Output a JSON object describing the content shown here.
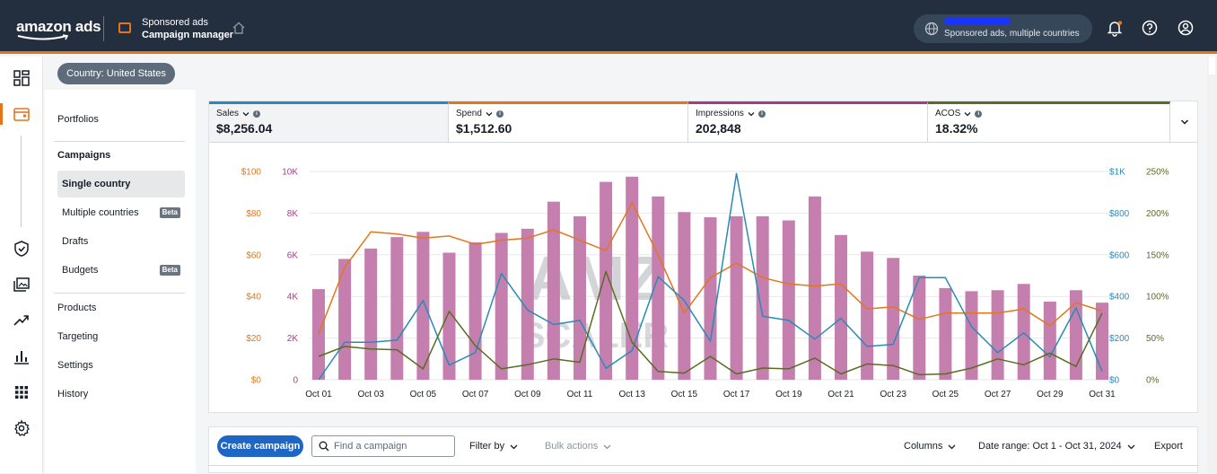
{
  "header": {
    "logo_text": "amazon ads",
    "product_top": "Sponsored ads",
    "product_bottom": "Campaign manager",
    "account_text": "Sponsored ads, multiple countries"
  },
  "country_selector": "Country: United States",
  "left_menu": {
    "portfolios": "Portfolios",
    "campaigns": "Campaigns",
    "single_country": "Single country",
    "multiple_countries": "Multiple countries",
    "drafts": "Drafts",
    "budgets": "Budgets",
    "beta": "Beta",
    "products": "Products",
    "targeting": "Targeting",
    "settings": "Settings",
    "history": "History"
  },
  "metrics": [
    {
      "label": "Sales",
      "value": "$8,256.04",
      "color": "#2a8ab7"
    },
    {
      "label": "Spend",
      "value": "$1,512.60",
      "color": "#e3761d"
    },
    {
      "label": "Impressions",
      "value": "202,848",
      "color": "#a33e84"
    },
    {
      "label": "ACOS",
      "value": "18.32%",
      "color": "#5b6b23"
    }
  ],
  "watermark": {
    "line1": "AMZ",
    "line2": "SCALER"
  },
  "chart_data": {
    "type": "bar+line",
    "categories": [
      "Oct 01",
      "Oct 02",
      "Oct 03",
      "Oct 04",
      "Oct 05",
      "Oct 06",
      "Oct 07",
      "Oct 08",
      "Oct 09",
      "Oct 10",
      "Oct 11",
      "Oct 12",
      "Oct 13",
      "Oct 14",
      "Oct 15",
      "Oct 16",
      "Oct 17",
      "Oct 18",
      "Oct 19",
      "Oct 20",
      "Oct 21",
      "Oct 22",
      "Oct 23",
      "Oct 24",
      "Oct 25",
      "Oct 26",
      "Oct 27",
      "Oct 28",
      "Oct 29",
      "Oct 30",
      "Oct 31"
    ],
    "x_tick_labels": [
      "Oct 01",
      "Oct 03",
      "Oct 05",
      "Oct 07",
      "Oct 09",
      "Oct 11",
      "Oct 13",
      "Oct 15",
      "Oct 17",
      "Oct 19",
      "Oct 21",
      "Oct 23",
      "Oct 25",
      "Oct 27",
      "Oct 29",
      "Oct 31"
    ],
    "axes": {
      "spend": {
        "ticks": [
          "$0",
          "$20",
          "$40",
          "$60",
          "$80",
          "$100"
        ],
        "max": 100,
        "color": "#e3761d"
      },
      "impressions": {
        "ticks": [
          "0",
          "2K",
          "4K",
          "6K",
          "8K",
          "10K"
        ],
        "max": 10000,
        "color": "#a33e84"
      },
      "sales": {
        "ticks": [
          "$0",
          "$200",
          "$400",
          "$600",
          "$800",
          "$1K"
        ],
        "max": 1000,
        "color": "#2a8ab7"
      },
      "acos": {
        "ticks": [
          "0%",
          "50%",
          "100%",
          "150%",
          "200%",
          "250%"
        ],
        "max": 250,
        "color": "#5b6b23"
      }
    },
    "series": [
      {
        "name": "Impressions",
        "type": "bar",
        "color": "#c57fae",
        "values": [
          4350,
          5800,
          6300,
          6850,
          7100,
          6100,
          6600,
          7050,
          7250,
          8550,
          7850,
          9500,
          9750,
          8800,
          8050,
          7800,
          7850,
          7850,
          7650,
          8800,
          6950,
          6150,
          5850,
          5000,
          4400,
          4250,
          4300,
          4600,
          3750,
          4300,
          3700
        ]
      },
      {
        "name": "Spend",
        "type": "line",
        "color": "#e3761d",
        "values": [
          22,
          54,
          71,
          70,
          68,
          69,
          65,
          67,
          68,
          72,
          67,
          62,
          85,
          60,
          32,
          49,
          56,
          49,
          46,
          45,
          46,
          34,
          35,
          29,
          32,
          32,
          32,
          34,
          26,
          37,
          33
        ]
      },
      {
        "name": "Sales",
        "type": "line",
        "color": "#2a8ab7",
        "values": [
          0,
          180,
          180,
          190,
          380,
          70,
          130,
          510,
          335,
          265,
          285,
          55,
          140,
          495,
          380,
          185,
          990,
          305,
          285,
          195,
          295,
          160,
          170,
          490,
          490,
          255,
          130,
          225,
          110,
          345,
          40
        ]
      },
      {
        "name": "ACOS",
        "type": "line",
        "color": "#5b6b23",
        "values": [
          28,
          40,
          37,
          36,
          13,
          82,
          41,
          13,
          18,
          25,
          21,
          130,
          45,
          10,
          8,
          28,
          7,
          14,
          13,
          26,
          7,
          19,
          17,
          6,
          7,
          14,
          25,
          18,
          32,
          16,
          80
        ]
      }
    ]
  },
  "toolbar": {
    "create_campaign": "Create campaign",
    "search_placeholder": "Find a campaign",
    "filter_by": "Filter by",
    "bulk_actions": "Bulk actions",
    "columns": "Columns",
    "date_range": "Date range: Oct 1 - Oct 31, 2024",
    "export": "Export"
  }
}
